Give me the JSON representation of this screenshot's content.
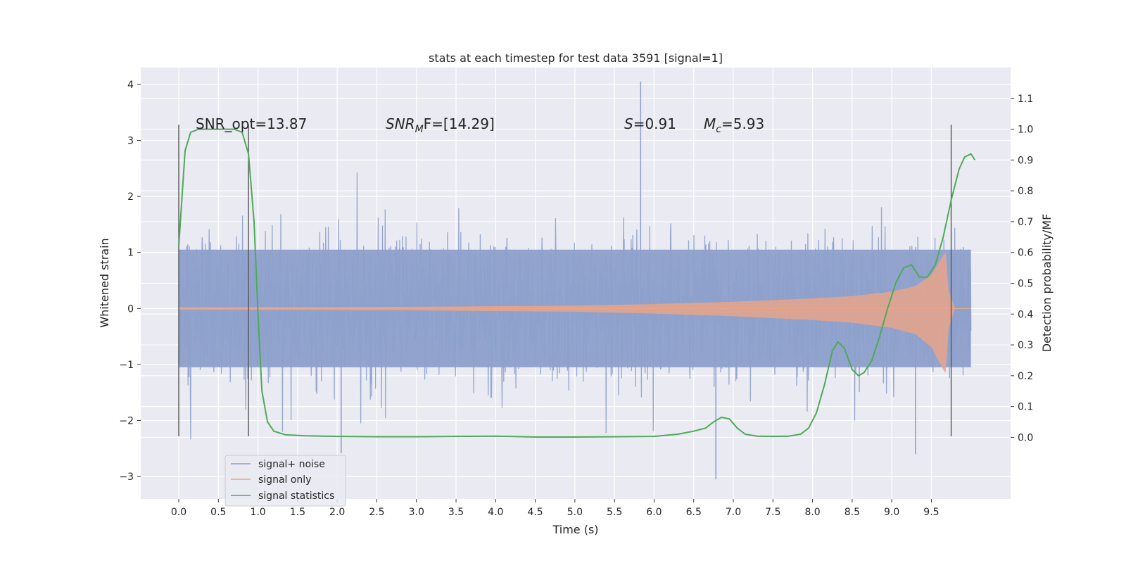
{
  "chart_data": {
    "type": "line",
    "title": "stats at each timestep for test data 3591 [signal=1]",
    "xlabel": "Time (s)",
    "ylabel_left": "Whitened strain",
    "ylabel_right": "Detection probability/MF",
    "xlim": [
      -0.48,
      10.5
    ],
    "ylim_left": [
      -3.4,
      4.3
    ],
    "ylim_right": [
      -0.2,
      1.2
    ],
    "x_ticks": [
      "0.0",
      "0.5",
      "1.0",
      "1.5",
      "2.0",
      "2.5",
      "3.0",
      "3.5",
      "4.0",
      "4.5",
      "5.0",
      "5.5",
      "6.0",
      "6.5",
      "7.0",
      "7.5",
      "8.0",
      "8.5",
      "9.0",
      "9.5"
    ],
    "y_left_ticks": [
      "4",
      "3",
      "2",
      "1",
      "0",
      "−1",
      "−2",
      "−3"
    ],
    "y_right_ticks": [
      "0.0",
      "0.1",
      "0.2",
      "0.3",
      "0.4",
      "0.5",
      "0.6",
      "0.7",
      "0.8",
      "0.9",
      "1.0",
      "1.1"
    ],
    "grid": true,
    "background": "#eaeaf2",
    "legend_position": "lower-left",
    "annotations": {
      "snr_opt": "SNR_opt=13.87",
      "snr_mf_base": "SNR",
      "snr_mf_sub": "M",
      "snr_mf_rest": "F=[14.29]",
      "s_var": "S",
      "s_val": "=0.91",
      "mc_var": "M",
      "mc_sub": "c",
      "mc_val": "=5.93"
    },
    "series": [
      {
        "name": "signal+ noise",
        "color": "#8da0cb",
        "axis": "left",
        "approx_spread": 1.0,
        "x_range": [
          0.0,
          10.0
        ],
        "envelope": {
          "upper_typical": 1.55,
          "lower_typical": -1.55,
          "notable_spikes": [
            [
              5.83,
              4.05
            ],
            [
              6.78,
              -3.05
            ],
            [
              9.3,
              -2.6
            ],
            [
              2.05,
              -2.58
            ]
          ]
        }
      },
      {
        "name": "signal only",
        "color": "#e8a58a",
        "axis": "left",
        "amplitude_profile": [
          [
            0.0,
            0.02
          ],
          [
            3.0,
            0.03
          ],
          [
            5.0,
            0.05
          ],
          [
            6.0,
            0.08
          ],
          [
            7.0,
            0.12
          ],
          [
            8.0,
            0.18
          ],
          [
            8.5,
            0.22
          ],
          [
            9.0,
            0.3
          ],
          [
            9.3,
            0.4
          ],
          [
            9.5,
            0.6
          ],
          [
            9.65,
            0.95
          ],
          [
            9.68,
            1.0
          ],
          [
            9.72,
            0.3
          ],
          [
            9.8,
            0.0
          ]
        ]
      },
      {
        "name": "signal statistics",
        "color": "#4daa57",
        "axis": "right",
        "points": [
          [
            0.0,
            0.62
          ],
          [
            0.08,
            0.93
          ],
          [
            0.15,
            0.99
          ],
          [
            0.25,
            1.0
          ],
          [
            0.4,
            1.0
          ],
          [
            0.55,
            1.0
          ],
          [
            0.7,
            1.0
          ],
          [
            0.8,
            0.99
          ],
          [
            0.88,
            0.92
          ],
          [
            0.95,
            0.7
          ],
          [
            1.0,
            0.4
          ],
          [
            1.05,
            0.15
          ],
          [
            1.12,
            0.05
          ],
          [
            1.2,
            0.02
          ],
          [
            1.35,
            0.008
          ],
          [
            1.6,
            0.005
          ],
          [
            2.0,
            0.003
          ],
          [
            2.5,
            0.002
          ],
          [
            3.0,
            0.002
          ],
          [
            3.5,
            0.003
          ],
          [
            4.0,
            0.004
          ],
          [
            4.5,
            0.001
          ],
          [
            5.0,
            0.001
          ],
          [
            5.5,
            0.002
          ],
          [
            6.0,
            0.003
          ],
          [
            6.3,
            0.01
          ],
          [
            6.5,
            0.02
          ],
          [
            6.65,
            0.03
          ],
          [
            6.75,
            0.05
          ],
          [
            6.85,
            0.065
          ],
          [
            6.95,
            0.06
          ],
          [
            7.05,
            0.03
          ],
          [
            7.15,
            0.01
          ],
          [
            7.3,
            0.004
          ],
          [
            7.5,
            0.003
          ],
          [
            7.7,
            0.004
          ],
          [
            7.85,
            0.01
          ],
          [
            7.95,
            0.03
          ],
          [
            8.05,
            0.08
          ],
          [
            8.15,
            0.17
          ],
          [
            8.25,
            0.28
          ],
          [
            8.32,
            0.31
          ],
          [
            8.4,
            0.29
          ],
          [
            8.5,
            0.22
          ],
          [
            8.58,
            0.2
          ],
          [
            8.65,
            0.21
          ],
          [
            8.75,
            0.25
          ],
          [
            8.85,
            0.33
          ],
          [
            8.95,
            0.42
          ],
          [
            9.05,
            0.5
          ],
          [
            9.15,
            0.55
          ],
          [
            9.25,
            0.56
          ],
          [
            9.35,
            0.52
          ],
          [
            9.45,
            0.52
          ],
          [
            9.55,
            0.56
          ],
          [
            9.65,
            0.65
          ],
          [
            9.75,
            0.77
          ],
          [
            9.85,
            0.87
          ],
          [
            9.92,
            0.91
          ],
          [
            10.0,
            0.92
          ],
          [
            10.05,
            0.9
          ]
        ]
      }
    ],
    "vertical_markers": [
      {
        "x": 0.0,
        "y_top": 3.28,
        "y_bottom": -2.28
      },
      {
        "x": 0.88,
        "y_top": 3.28,
        "y_bottom": -2.28
      },
      {
        "x": 9.75,
        "y_top": 3.28,
        "y_bottom": -2.28
      }
    ]
  }
}
